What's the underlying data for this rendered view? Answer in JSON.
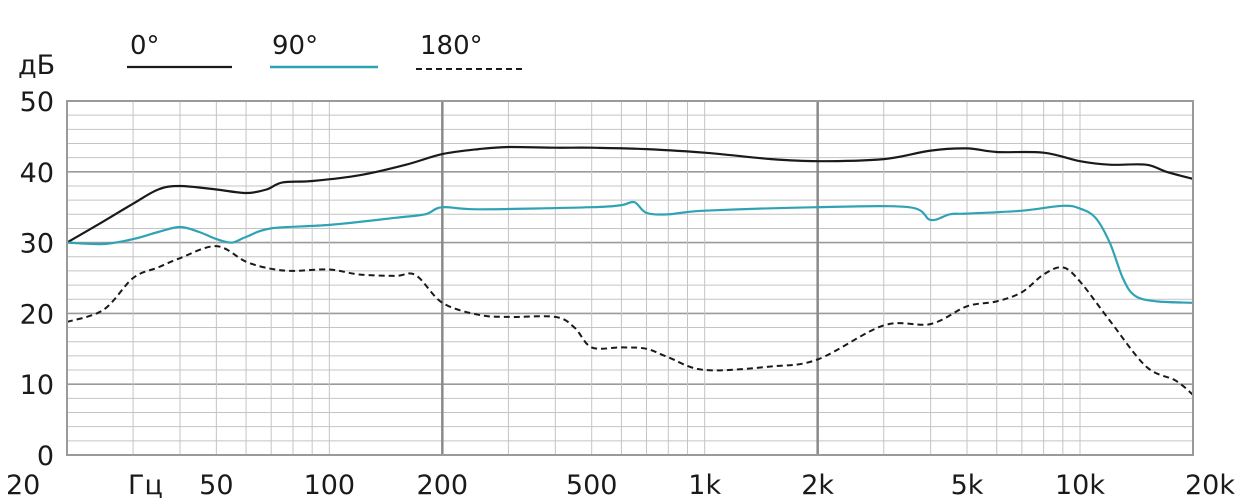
{
  "chart_data": {
    "type": "line",
    "ylabel": "дБ",
    "xunit": "Гц",
    "xscale": "log",
    "xlim": [
      20,
      20000
    ],
    "ylim": [
      0,
      50
    ],
    "grid": true,
    "legend_placement": "top-left",
    "x_ticks": [
      {
        "value": 20,
        "label": "20"
      },
      {
        "value": 50,
        "label": "50"
      },
      {
        "value": 100,
        "label": "100"
      },
      {
        "value": 200,
        "label": "200"
      },
      {
        "value": 500,
        "label": "500"
      },
      {
        "value": 1000,
        "label": "1k"
      },
      {
        "value": 2000,
        "label": "2k"
      },
      {
        "value": 5000,
        "label": "5k"
      },
      {
        "value": 10000,
        "label": "10k"
      },
      {
        "value": 20000,
        "label": "20k"
      }
    ],
    "y_ticks": [
      {
        "value": 0,
        "label": "0"
      },
      {
        "value": 10,
        "label": "10"
      },
      {
        "value": 20,
        "label": "20"
      },
      {
        "value": 30,
        "label": "30"
      },
      {
        "value": 40,
        "label": "40"
      },
      {
        "value": 50,
        "label": "50"
      }
    ],
    "series": [
      {
        "name": "0°",
        "color": "#1a1a1a",
        "style": "solid",
        "points": [
          [
            20,
            30
          ],
          [
            25,
            33
          ],
          [
            30,
            35.5
          ],
          [
            35,
            37.5
          ],
          [
            40,
            38
          ],
          [
            50,
            37.5
          ],
          [
            60,
            37
          ],
          [
            68,
            37.5
          ],
          [
            75,
            38.5
          ],
          [
            90,
            38.7
          ],
          [
            120,
            39.5
          ],
          [
            160,
            41
          ],
          [
            200,
            42.5
          ],
          [
            250,
            43.2
          ],
          [
            300,
            43.5
          ],
          [
            400,
            43.4
          ],
          [
            500,
            43.4
          ],
          [
            700,
            43.2
          ],
          [
            1000,
            42.7
          ],
          [
            1500,
            41.8
          ],
          [
            2000,
            41.5
          ],
          [
            3000,
            41.8
          ],
          [
            4000,
            43
          ],
          [
            5000,
            43.3
          ],
          [
            6000,
            42.8
          ],
          [
            8000,
            42.7
          ],
          [
            10000,
            41.5
          ],
          [
            12000,
            41
          ],
          [
            15000,
            41
          ],
          [
            17000,
            40
          ],
          [
            20000,
            39
          ]
        ]
      },
      {
        "name": "90°",
        "color": "#2fa3b5",
        "style": "solid",
        "points": [
          [
            20,
            30
          ],
          [
            25,
            29.8
          ],
          [
            30,
            30.5
          ],
          [
            35,
            31.5
          ],
          [
            40,
            32.2
          ],
          [
            45,
            31.5
          ],
          [
            50,
            30.5
          ],
          [
            55,
            30
          ],
          [
            60,
            30.8
          ],
          [
            70,
            32
          ],
          [
            100,
            32.5
          ],
          [
            150,
            33.5
          ],
          [
            180,
            34
          ],
          [
            200,
            35
          ],
          [
            250,
            34.7
          ],
          [
            500,
            35
          ],
          [
            600,
            35.3
          ],
          [
            650,
            35.7
          ],
          [
            700,
            34.2
          ],
          [
            800,
            34
          ],
          [
            1000,
            34.5
          ],
          [
            2000,
            35
          ],
          [
            3500,
            35
          ],
          [
            4000,
            33.2
          ],
          [
            4500,
            34
          ],
          [
            5000,
            34.1
          ],
          [
            7000,
            34.5
          ],
          [
            9000,
            35.2
          ],
          [
            10000,
            34.8
          ],
          [
            11000,
            33.5
          ],
          [
            12000,
            30
          ],
          [
            13000,
            25
          ],
          [
            14000,
            22.5
          ],
          [
            16000,
            21.7
          ],
          [
            20000,
            21.5
          ]
        ]
      },
      {
        "name": "180°",
        "color": "#1a1a1a",
        "style": "dashed",
        "points": [
          [
            20,
            18.8
          ],
          [
            25,
            20.5
          ],
          [
            30,
            25
          ],
          [
            35,
            26.5
          ],
          [
            40,
            27.8
          ],
          [
            50,
            29.5
          ],
          [
            60,
            27.3
          ],
          [
            70,
            26.3
          ],
          [
            80,
            26
          ],
          [
            100,
            26.2
          ],
          [
            120,
            25.5
          ],
          [
            150,
            25.3
          ],
          [
            170,
            25.4
          ],
          [
            200,
            21.5
          ],
          [
            250,
            19.8
          ],
          [
            300,
            19.5
          ],
          [
            400,
            19.5
          ],
          [
            450,
            18
          ],
          [
            500,
            15.2
          ],
          [
            600,
            15.2
          ],
          [
            700,
            15
          ],
          [
            800,
            13.8
          ],
          [
            1000,
            12
          ],
          [
            1500,
            12.5
          ],
          [
            2000,
            13.5
          ],
          [
            3000,
            18.3
          ],
          [
            4000,
            18.5
          ],
          [
            5000,
            21
          ],
          [
            6000,
            21.7
          ],
          [
            7000,
            23
          ],
          [
            8000,
            25.5
          ],
          [
            9000,
            26.5
          ],
          [
            10000,
            24.5
          ],
          [
            12000,
            19
          ],
          [
            15000,
            12.5
          ],
          [
            18000,
            10.5
          ],
          [
            20000,
            8.5
          ]
        ]
      }
    ]
  }
}
